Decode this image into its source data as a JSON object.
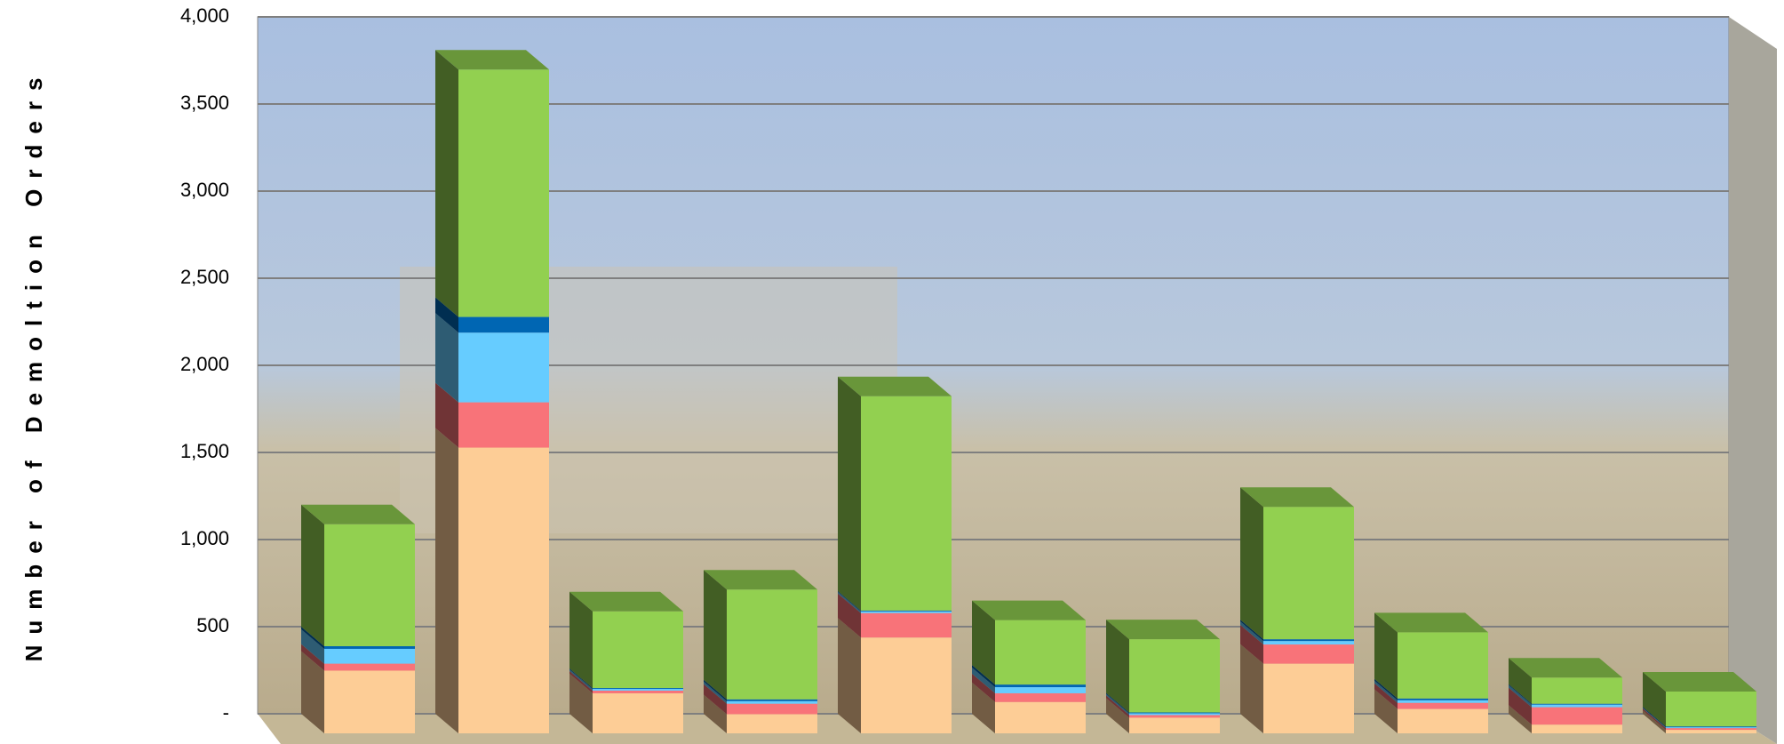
{
  "chart_data": {
    "type": "bar3d_stacked",
    "y_label": "Number of Demoltion Orders",
    "categories": [
      null,
      null,
      null,
      null,
      null,
      null,
      null,
      null,
      null,
      null,
      null
    ],
    "series": [
      {
        "color": "#fdcd96",
        "values": [
          360,
          1640,
          230,
          110,
          550,
          180,
          90,
          400,
          140,
          50,
          20
        ]
      },
      {
        "color": "#f87379",
        "values": [
          40,
          260,
          15,
          60,
          140,
          50,
          15,
          110,
          35,
          100,
          10
        ]
      },
      {
        "color": "#66ccff",
        "values": [
          85,
          400,
          10,
          15,
          10,
          35,
          10,
          20,
          15,
          15,
          5
        ]
      },
      {
        "color": "#0066b3",
        "values": [
          15,
          90,
          5,
          10,
          5,
          15,
          5,
          10,
          10,
          5,
          5
        ]
      },
      {
        "color": "#92d050",
        "values": [
          700,
          1420,
          440,
          630,
          1230,
          370,
          420,
          760,
          380,
          150,
          200
        ]
      }
    ],
    "ylim": [
      0,
      4000
    ],
    "yticks": [
      {
        "value": 0,
        "label": "-"
      },
      500,
      {
        "value": 1000,
        "label": "1,000"
      },
      {
        "value": 1500,
        "label": "1,500"
      },
      {
        "value": 2000,
        "label": "2,000"
      },
      {
        "value": 2500,
        "label": "2,500"
      },
      {
        "value": 3000,
        "label": "3,000"
      },
      {
        "value": 3500,
        "label": "3,500"
      },
      {
        "value": 4000,
        "label": "4,000"
      }
    ],
    "grid": true
  }
}
